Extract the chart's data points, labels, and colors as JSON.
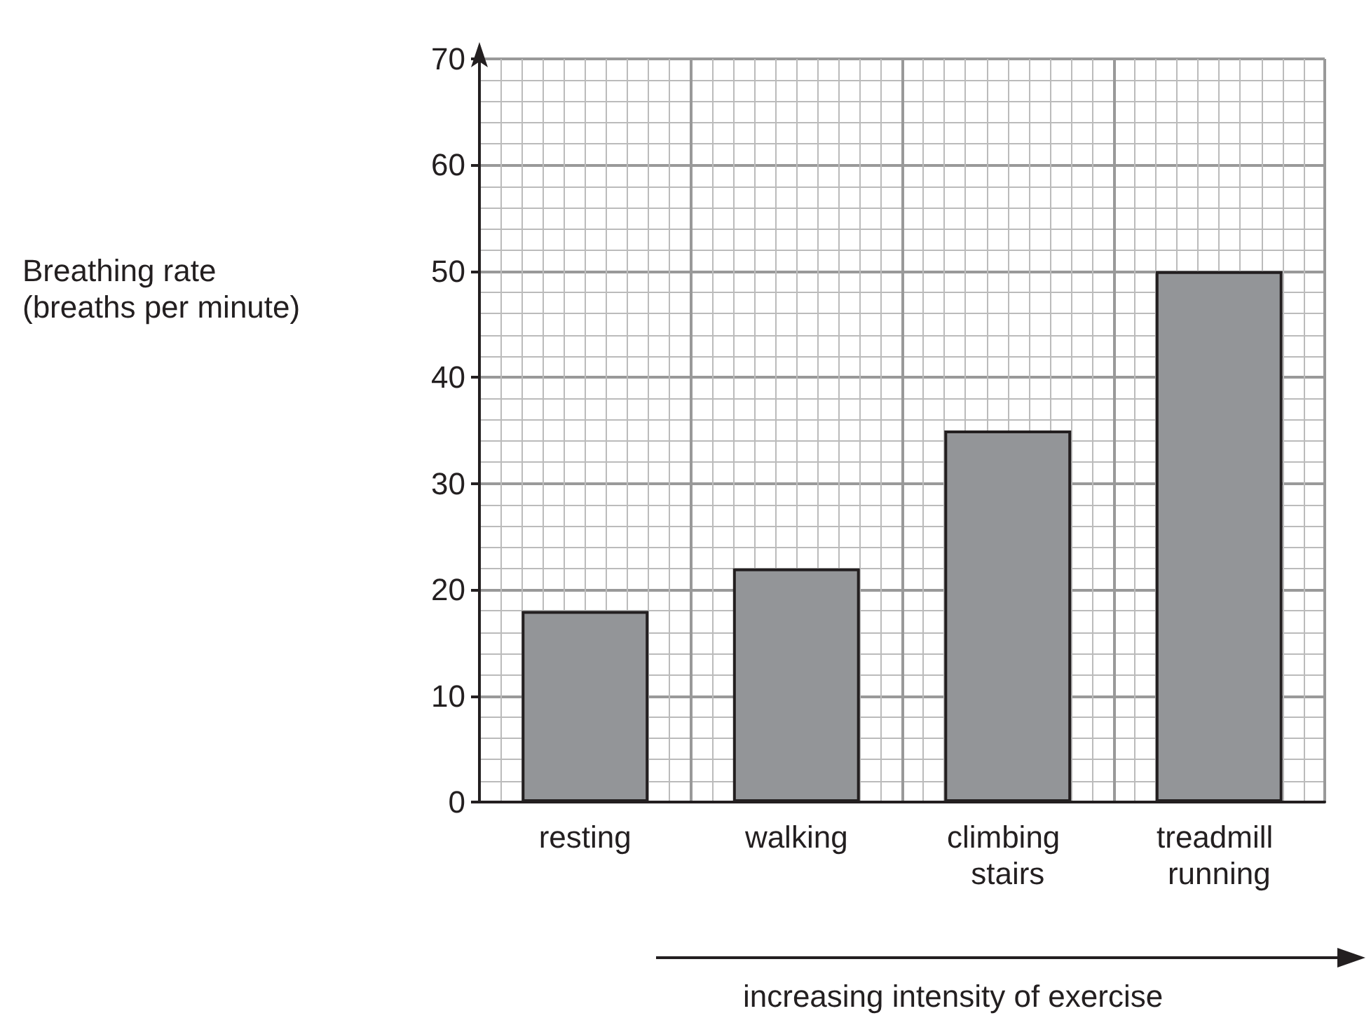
{
  "chart_data": {
    "type": "bar",
    "xlabel": "increasing intensity of exercise",
    "ylabel": "Breathing rate\n(breaths per minute)",
    "categories": [
      "resting",
      "walking",
      "climbing stairs",
      "treadmill running"
    ],
    "values": [
      18,
      22,
      35,
      50
    ],
    "color": "#939598",
    "ylim": [
      0,
      70
    ],
    "yticks": [
      0,
      10,
      20,
      30,
      40,
      50,
      60,
      70
    ],
    "grid": true
  }
}
